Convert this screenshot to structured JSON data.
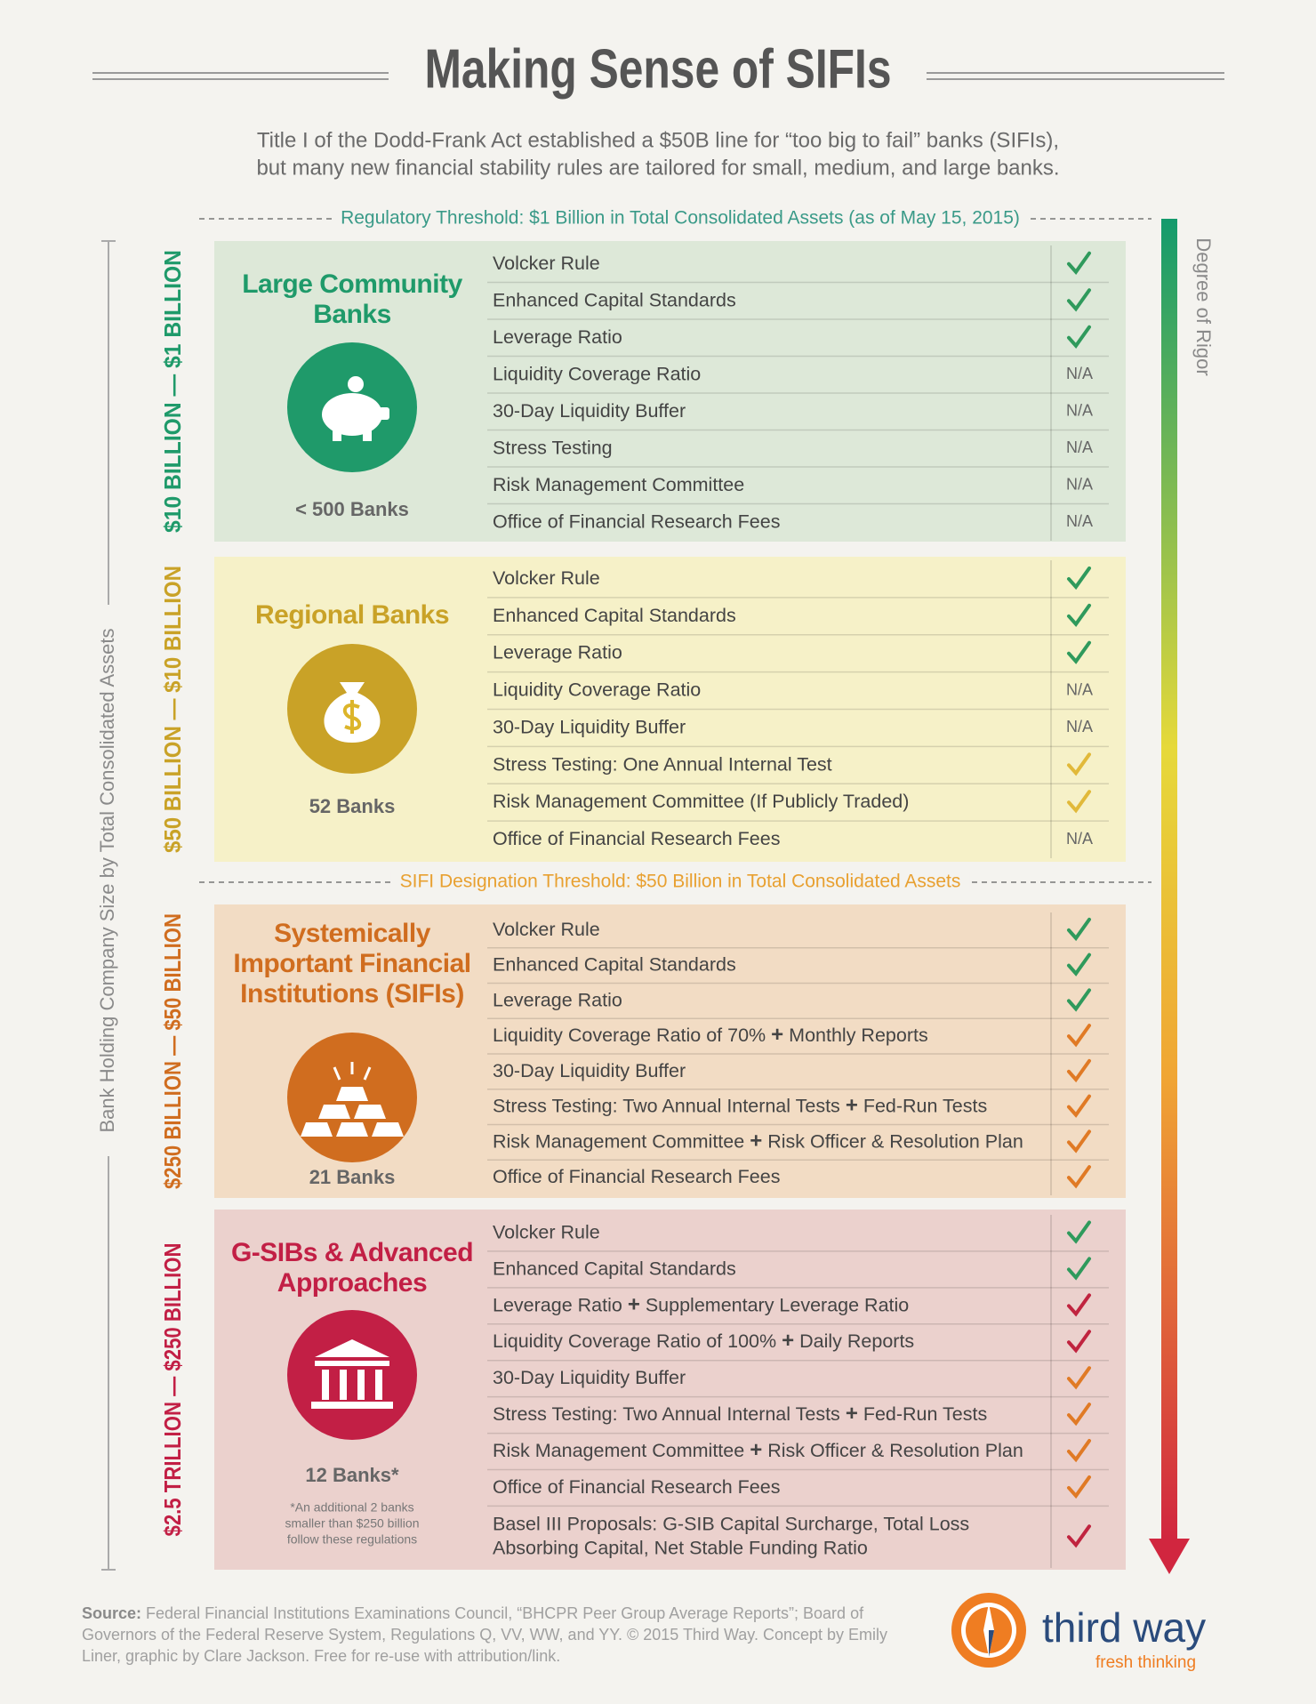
{
  "header": {
    "title": "Making Sense of SIFIs",
    "subtitle": [
      "Title I of the Dodd-Frank Act established a $50B line for “too big to fail” banks (SIFIs),",
      "but many new financial stability rules are tailored for small, medium, and large banks."
    ]
  },
  "thresholds": [
    {
      "text": "Regulatory Threshold: $1 Billion in Total Consolidated Assets (as of May 15, 2015)",
      "color": "#3a9a88"
    },
    {
      "text": "SIFI Designation Threshold: $50 Billion in Total Consolidated Assets",
      "color": "#e8a030"
    }
  ],
  "axis_label": "Bank Holding Company Size by Total Consolidated Assets",
  "rigor_label": "Degree of Rigor",
  "tiers": [
    {
      "range": "$10 BILLION — $1 BILLION",
      "name": [
        "Large Community",
        "Banks"
      ],
      "count": "< 500 Banks",
      "background": "#dde8d8",
      "color": "#1f9a6a",
      "rows": [
        {
          "item": [
            "Volcker Rule"
          ],
          "check": "#2f9a5c"
        },
        {
          "item": [
            "Enhanced Capital Standards"
          ],
          "check": "#2f9a5c"
        },
        {
          "item": [
            "Leverage Ratio"
          ],
          "check": "#2f9a5c"
        },
        {
          "item": [
            "Liquidity Coverage Ratio"
          ],
          "status": "N/A"
        },
        {
          "item": [
            "30-Day Liquidity Buffer"
          ],
          "status": "N/A"
        },
        {
          "item": [
            "Stress Testing"
          ],
          "status": "N/A"
        },
        {
          "item": [
            "Risk Management Committee"
          ],
          "status": "N/A"
        },
        {
          "item": [
            "Office of Financial Research Fees"
          ],
          "status": "N/A"
        }
      ]
    },
    {
      "range": "$50 BILLION — $10 BILLION",
      "name": [
        "Regional Banks"
      ],
      "count": "52 Banks",
      "background": "#f6f1c8",
      "color": "#c9a227",
      "rows": [
        {
          "item": [
            "Volcker Rule"
          ],
          "check": "#2f9a5c"
        },
        {
          "item": [
            "Enhanced Capital Standards"
          ],
          "check": "#2f9a5c"
        },
        {
          "item": [
            "Leverage Ratio"
          ],
          "check": "#2f9a5c"
        },
        {
          "item": [
            "Liquidity Coverage Ratio"
          ],
          "status": "N/A"
        },
        {
          "item": [
            "30-Day Liquidity Buffer"
          ],
          "status": "N/A"
        },
        {
          "item": [
            "Stress Testing: One Annual Internal Test"
          ],
          "check": "#e1b93a"
        },
        {
          "item": [
            "Risk Management Committee (If Publicly Traded)"
          ],
          "check": "#e1b93a"
        },
        {
          "item": [
            "Office of Financial Research Fees"
          ],
          "status": "N/A"
        }
      ]
    },
    {
      "range": "$250 BILLION — $50 BILLION",
      "name": [
        "Systemically",
        "Important Financial",
        "Institutions (SIFIs)"
      ],
      "count": "21 Banks",
      "background": "#f2dcc4",
      "color": "#d06d1f",
      "rows": [
        {
          "item": [
            "Volcker Rule"
          ],
          "check": "#2f9a5c"
        },
        {
          "item": [
            "Enhanced Capital Standards"
          ],
          "check": "#2f9a5c"
        },
        {
          "item": [
            "Leverage Ratio"
          ],
          "check": "#2f9a5c"
        },
        {
          "item": [
            "Liquidity Coverage Ratio of 70%",
            "+",
            "Monthly Reports"
          ],
          "check": "#e07a25"
        },
        {
          "item": [
            "30-Day Liquidity Buffer"
          ],
          "check": "#e07a25"
        },
        {
          "item": [
            "Stress Testing: Two Annual Internal Tests",
            "+",
            "Fed-Run Tests"
          ],
          "check": "#e07a25"
        },
        {
          "item": [
            "Risk Management Committee",
            "+",
            "Risk Officer & Resolution Plan"
          ],
          "check": "#e07a25"
        },
        {
          "item": [
            "Office of Financial Research Fees"
          ],
          "check": "#e07a25"
        }
      ]
    },
    {
      "range": "$2.5 TRILLION — $250 BILLION",
      "name": [
        "G-SIBs & Advanced",
        "Approaches"
      ],
      "count": "12 Banks*",
      "note": [
        "*An additional 2 banks",
        "smaller than $250 billion",
        "follow these regulations"
      ],
      "background": "#ebd1cd",
      "color": "#c21f45",
      "rows": [
        {
          "item": [
            "Volcker Rule"
          ],
          "check": "#2f9a5c"
        },
        {
          "item": [
            "Enhanced Capital Standards"
          ],
          "check": "#2f9a5c"
        },
        {
          "item": [
            "Leverage Ratio",
            "+",
            "Supplementary Leverage Ratio"
          ],
          "check": "#c0243f"
        },
        {
          "item": [
            "Liquidity Coverage Ratio of 100%",
            "+",
            "Daily Reports"
          ],
          "check": "#c0243f"
        },
        {
          "item": [
            "30-Day Liquidity Buffer"
          ],
          "check": "#e07a25"
        },
        {
          "item": [
            "Stress Testing: Two Annual Internal Tests",
            "+",
            "Fed-Run Tests"
          ],
          "check": "#e07a25"
        },
        {
          "item": [
            "Risk Management Committee",
            "+",
            "Risk Officer & Resolution Plan"
          ],
          "check": "#e07a25"
        },
        {
          "item": [
            "Office of Financial Research Fees"
          ],
          "check": "#e07a25"
        },
        {
          "lines": [
            "Basel III Proposals: G-SIB Capital Surcharge, Total Loss",
            "Absorbing Capital, Net Stable Funding Ratio"
          ],
          "check": "#c0243f"
        }
      ]
    }
  ],
  "footer": {
    "source_label": "Source:",
    "source_text": " Federal Financial Institutions Examinations Council, “BHCPR Peer Group Average Reports”; Board of Governors of the Federal Reserve System, Regulations Q, VV, WW, and YY. © 2015 Third Way. Concept by Emily Liner, graphic by Clare Jackson. Free for re-use with attribution/link.",
    "logo": "third way",
    "tagline": "fresh thinking"
  }
}
